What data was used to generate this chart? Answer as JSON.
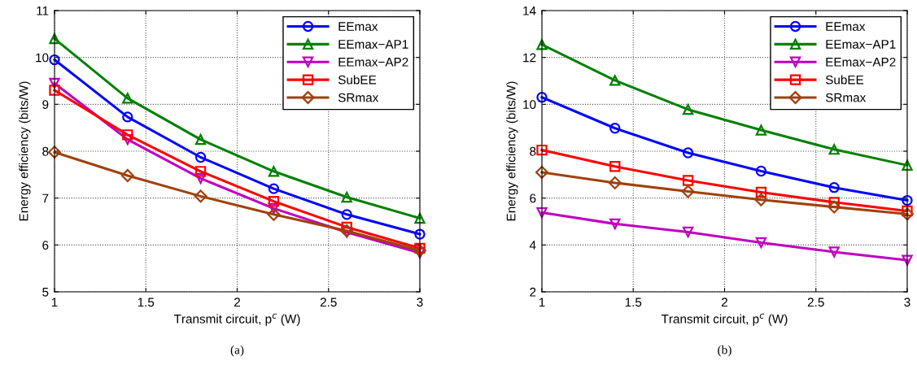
{
  "chart_data": [
    {
      "type": "line",
      "xlabel": "Transmit circuit, p$^{c}$ (W)",
      "ylabel": "Energy efficiency (bits/W)",
      "x": [
        1,
        1.4,
        1.8,
        2.2,
        2.6,
        3
      ],
      "xlim": [
        1,
        3
      ],
      "xticks": [
        1,
        1.5,
        2,
        2.5,
        3
      ],
      "ylim": [
        5,
        11
      ],
      "yticks": [
        5,
        6,
        7,
        8,
        9,
        10,
        11
      ],
      "grid": true,
      "legend": "top right",
      "line_style": "solid",
      "annotations": [
        "(a)"
      ],
      "series": [
        {
          "name": "EEmax",
          "color": "#0000ff",
          "marker": "circle",
          "values": [
            9.95,
            8.73,
            7.87,
            7.2,
            6.65,
            6.23
          ]
        },
        {
          "name": "EEmax−AP1",
          "color": "#008000",
          "marker": "triangle",
          "values": [
            10.4,
            9.13,
            8.25,
            7.57,
            7.02,
            6.57
          ]
        },
        {
          "name": "EEmax−AP2",
          "color": "#bf00bf",
          "marker": "triangle_down",
          "values": [
            9.45,
            8.25,
            7.42,
            6.78,
            6.27,
            5.83
          ]
        },
        {
          "name": "SubEE",
          "color": "#ff0000",
          "marker": "square",
          "values": [
            9.3,
            8.35,
            7.57,
            6.93,
            6.38,
            5.93
          ]
        },
        {
          "name": "SRmax",
          "color": "#a0410d",
          "marker": "diamond",
          "values": [
            7.98,
            7.48,
            7.04,
            6.65,
            6.3,
            5.88
          ]
        }
      ]
    },
    {
      "type": "line",
      "xlabel": "Transmit circuit, p$^{c}$ (W)",
      "ylabel": "Energy efficiency (bits/W)",
      "x": [
        1,
        1.4,
        1.8,
        2.2,
        2.6,
        3
      ],
      "xlim": [
        1,
        3
      ],
      "xticks": [
        1,
        1.5,
        2,
        2.5,
        3
      ],
      "ylim": [
        2,
        14
      ],
      "yticks": [
        2,
        4,
        6,
        8,
        10,
        12,
        14
      ],
      "grid": true,
      "legend": "top right",
      "line_style": "solid",
      "annotations": [
        "(b)"
      ],
      "series": [
        {
          "name": "EEmax",
          "color": "#0000ff",
          "marker": "circle",
          "values": [
            10.3,
            8.98,
            7.93,
            7.15,
            6.45,
            5.9
          ]
        },
        {
          "name": "EEmax−AP1",
          "color": "#008000",
          "marker": "triangle",
          "values": [
            12.55,
            11.02,
            9.78,
            8.9,
            8.08,
            7.4
          ]
        },
        {
          "name": "EEmax−AP2",
          "color": "#bf00bf",
          "marker": "triangle_down",
          "values": [
            5.38,
            4.9,
            4.55,
            4.1,
            3.7,
            3.35
          ]
        },
        {
          "name": "SubEE",
          "color": "#ff0000",
          "marker": "square",
          "values": [
            8.05,
            7.35,
            6.75,
            6.25,
            5.82,
            5.45
          ]
        },
        {
          "name": "SRmax",
          "color": "#a0410d",
          "marker": "diamond",
          "values": [
            7.1,
            6.65,
            6.28,
            5.93,
            5.62,
            5.32
          ]
        }
      ]
    }
  ]
}
